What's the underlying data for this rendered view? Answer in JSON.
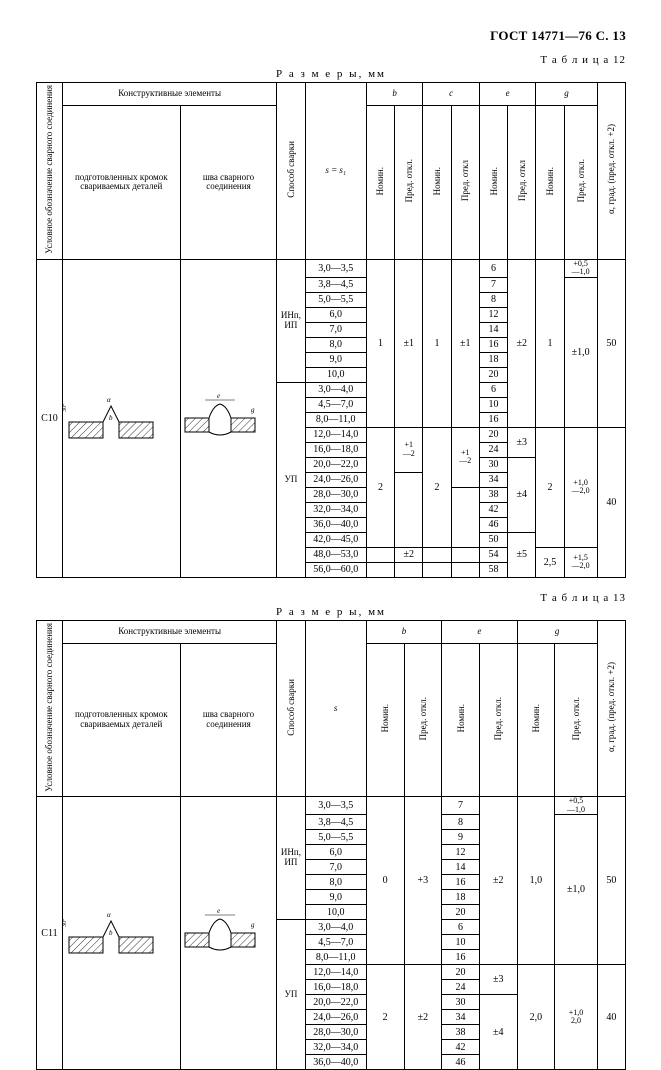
{
  "header": "ГОСТ 14771—76 С. 13",
  "table12": {
    "label": "Т а б л и ц а   12",
    "dim": "Р а з м е р ы,   мм",
    "code": "С10",
    "hdr": {
      "cond": "Условное  обозначение\nсварного соединения",
      "constr": "Конструктивные элементы",
      "prep": "подготовленных кромок свариваемых деталей",
      "seam": "шва сварного соединения",
      "method": "Способ сварки",
      "s": "s = s₁",
      "b": "b",
      "c": "c",
      "e": "e",
      "g": "g",
      "nom": "Номин.",
      "tol": "Пред. откл.",
      "tol2": "Пред. откл",
      "alpha": "α, град. (пред. откл. +2)"
    },
    "meth1": "ИНп,\nИП",
    "meth2": "УП",
    "r": [
      {
        "s": "3,0—3,5",
        "e": "6"
      },
      {
        "s": "3,8—4,5",
        "e": "7"
      },
      {
        "s": "5,0—5,5",
        "e": "8"
      },
      {
        "s": "6,0",
        "e": "12"
      },
      {
        "s": "7,0",
        "bN": "1",
        "bT": "±1",
        "cN": "1",
        "cT": "±1",
        "e": "14",
        "eT": "±2",
        "gN": "1",
        "gT": "±1,0",
        "a": "50",
        "gTop": "+0,5",
        "gBot": "—1,0"
      },
      {
        "s": "8,0",
        "e": "16"
      },
      {
        "s": "9,0",
        "e": "18"
      },
      {
        "s": "10,0",
        "e": "20"
      },
      {
        "s": "3,0—4,0",
        "e": "6"
      },
      {
        "s": "4,5—7,0",
        "e": "10"
      },
      {
        "s": "8,0—11,0",
        "e": "16"
      },
      {
        "s": "12,0—14,0",
        "e": "20",
        "eT": "±3"
      },
      {
        "s": "16,0—18,0",
        "e": "24"
      },
      {
        "s": "20,0—22,0",
        "bT": "+1\n—2",
        "e": "30",
        "gN": "2",
        "gTtop": "+1,0",
        "gTbot": "—2,0",
        "a": "40"
      },
      {
        "s": "24,0—26,0",
        "bN": "2",
        "cN": "2",
        "cT": "+1\n—2",
        "e": "34",
        "eT": "±4"
      },
      {
        "s": "28,0—30,0",
        "e": "38"
      },
      {
        "s": "32,0—34,0",
        "e": "42"
      },
      {
        "s": "36,0—40,0",
        "e": "46"
      },
      {
        "s": "42,0—45,0",
        "e": "50"
      },
      {
        "s": "48,0—53,0",
        "bT": "±2",
        "e": "54",
        "eT": "±5",
        "gN": "2,5",
        "gTtop": "+1,5",
        "gTbot": "—2,0"
      },
      {
        "s": "56,0—60,0",
        "e": "58"
      }
    ]
  },
  "table13": {
    "label": "Т а б л и ц а   13",
    "dim": "Р а з м е р ы,   мм",
    "code": "С11",
    "hdr": {
      "cond": "Условное  обозначение\nсварного соединения",
      "constr": "Конструктивные элементы",
      "prep": "подготовленных кромок свариваемых деталей",
      "seam": "шва сварного соединения",
      "method": "Способ сварки",
      "s": "s",
      "b": "b",
      "e": "e",
      "g": "g",
      "nom": "Номин.",
      "tol": "Пред. откл.",
      "alpha": "α, град. (пред. откл. +2)"
    },
    "meth1": "ИНп,\nИП",
    "meth2": "УП",
    "r": [
      {
        "s": "3,0—3,5",
        "e": "7"
      },
      {
        "s": "3,8—4,5",
        "e": "8"
      },
      {
        "s": "5,0—5,5",
        "e": "9"
      },
      {
        "s": "6,0",
        "e": "12",
        "gTop": "+0,5",
        "gBot": "—1,0"
      },
      {
        "s": "7,0",
        "bN": "0",
        "bT": "+3",
        "e": "14",
        "eT": "±2",
        "gN": "1,0",
        "gT": "±1,0",
        "a": "50"
      },
      {
        "s": "8,0",
        "e": "16"
      },
      {
        "s": "9,0",
        "e": "18"
      },
      {
        "s": "10,0",
        "e": "20"
      },
      {
        "s": "3,0—4,0",
        "e": "6"
      },
      {
        "s": "4,5—7,0",
        "e": "10"
      },
      {
        "s": "8,0—11,0",
        "e": "16"
      },
      {
        "s": "12,0—14,0",
        "e": "20",
        "eT": "±3"
      },
      {
        "s": "16,0—18,0",
        "e": "24"
      },
      {
        "s": "20,0—22,0",
        "bN": "2",
        "bT": "±2",
        "e": "30",
        "gN": "2,0",
        "gTtop": "+1,0",
        "gTbot": "2,0",
        "a": "40"
      },
      {
        "s": "24,0—26,0",
        "e": "34",
        "eT": "±4"
      },
      {
        "s": "28,0—30,0",
        "e": "38"
      },
      {
        "s": "32,0—34,0",
        "e": "42"
      },
      {
        "s": "36,0—40,0",
        "e": "46"
      }
    ]
  }
}
